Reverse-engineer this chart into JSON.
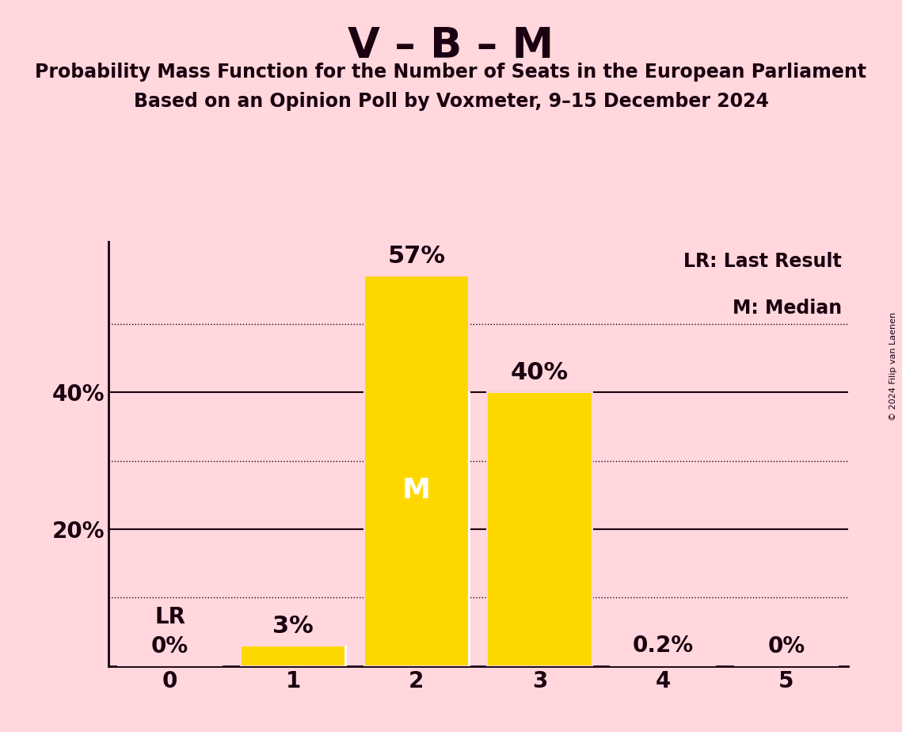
{
  "title": "V – B – M",
  "subtitle1": "Probability Mass Function for the Number of Seats in the European Parliament",
  "subtitle2": "Based on an Opinion Poll by Voxmeter, 9–15 December 2024",
  "copyright": "© 2024 Filip van Laenen",
  "categories": [
    0,
    1,
    2,
    3,
    4,
    5
  ],
  "values": [
    0.0,
    3.0,
    57.0,
    40.0,
    0.2,
    0.0
  ],
  "bar_color": "#FFD700",
  "bar_labels": [
    "0%",
    "3%",
    "57%",
    "40%",
    "0.2%",
    "0%"
  ],
  "lr_bar": 0,
  "median_bar": 2,
  "background_color": "#FFD7DC",
  "text_color": "#1a0010",
  "yticks": [
    0,
    10,
    20,
    30,
    40,
    50
  ],
  "ytick_labels": [
    "",
    "",
    "20%",
    "",
    "40%",
    ""
  ],
  "solid_yticks": [
    20,
    40
  ],
  "dotted_yticks": [
    10,
    30,
    50
  ],
  "ylim": [
    0,
    62
  ],
  "legend_lr": "LR: Last Result",
  "legend_m": "M: Median",
  "title_fontsize": 38,
  "subtitle_fontsize": 17,
  "ytick_fontsize": 20,
  "xtick_fontsize": 20,
  "bar_label_fontsize": 20,
  "legend_fontsize": 17,
  "bar_width": 0.85
}
